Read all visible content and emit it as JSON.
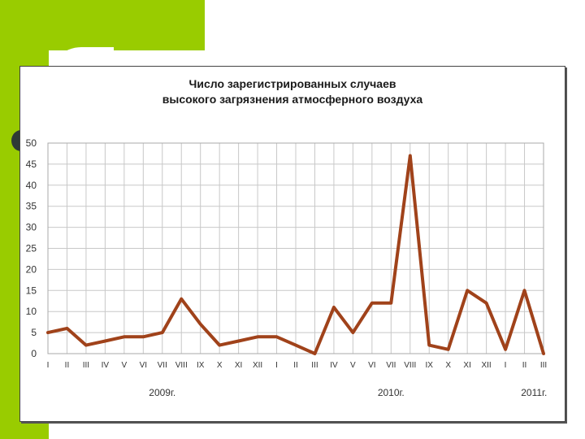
{
  "theme": {
    "accent": "#99cc00",
    "line_color": "#a0421a",
    "grid_color": "#c8c8c8",
    "bullet_color": "#2f3b36"
  },
  "chart_data": {
    "type": "line",
    "title": [
      "Число зарегистрированных случаев",
      "высокого загрязнения атмосферного воздуха"
    ],
    "xlabel": "",
    "ylabel": "",
    "ylim": [
      0,
      50
    ],
    "yticks": [
      0,
      5,
      10,
      15,
      20,
      25,
      30,
      35,
      40,
      45,
      50
    ],
    "grid": true,
    "legend": "none",
    "categories": [
      "I",
      "II",
      "III",
      "IV",
      "V",
      "VI",
      "VII",
      "VIII",
      "IX",
      "X",
      "XI",
      "XII",
      "I",
      "II",
      "III",
      "IV",
      "V",
      "VI",
      "VII",
      "VIII",
      "IX",
      "X",
      "XI",
      "XII",
      "I",
      "II",
      "III"
    ],
    "year_labels": [
      {
        "text": "2009г.",
        "center_index": 6
      },
      {
        "text": "2010г.",
        "center_index": 18
      },
      {
        "text": "2011г.",
        "center_index": 25.5
      }
    ],
    "series": [
      {
        "values": [
          5,
          6,
          2,
          3,
          4,
          4,
          5,
          13,
          7,
          2,
          3,
          4,
          4,
          2,
          0,
          11,
          5,
          12,
          12,
          47,
          2,
          1,
          15,
          12,
          1,
          15,
          0
        ]
      }
    ]
  }
}
